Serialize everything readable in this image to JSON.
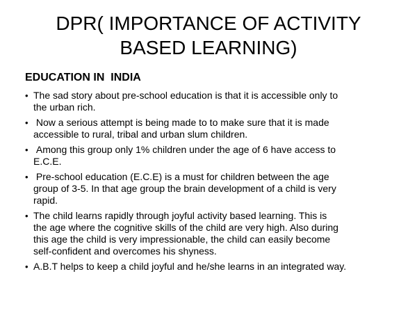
{
  "slide": {
    "title": "DPR( IMPORTANCE OF ACTIVITY BASED LEARNING)",
    "heading": "EDUCATION IN  INDIA",
    "bullet_marker": "•",
    "bullets": [
      "The sad story about pre-school education is that it is accessible only to\nthe urban rich.",
      " Now a serious attempt is being made to to make sure that it is made\naccessible to rural, tribal and urban slum children.",
      " Among this group only 1% children under the age of 6 have access to\nE.C.E.",
      " Pre-school education (E.C.E) is a must for children between the age\ngroup of 3-5. In that age group the brain development of a child is very\nrapid.",
      "The child learns rapidly through joyful activity based learning. This is\nthe age where the cognitive skills of the child are very high. Also during\nthis age the child is very impressionable, the child can easily become\nself-confident and overcomes his shyness.",
      "A.B.T helps to keep a child joyful and he/she learns in an integrated way."
    ],
    "colors": {
      "background": "#ffffff",
      "text": "#000000"
    }
  }
}
